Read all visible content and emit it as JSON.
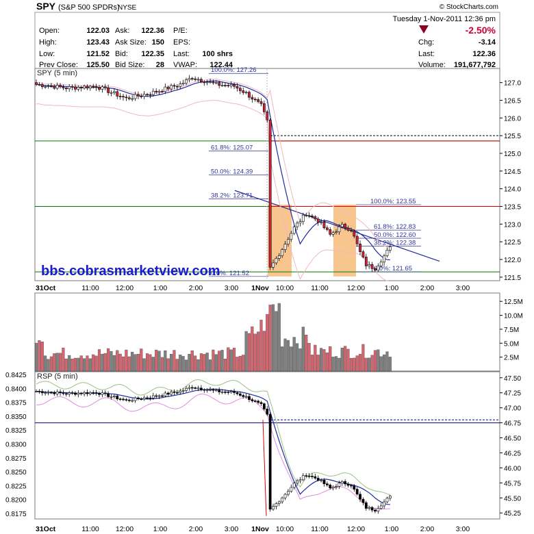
{
  "header": {
    "symbol": "SPY",
    "name": "(S&P 500 SPDRs)",
    "exchange": "NYSE",
    "watermark": "© StockCharts.com",
    "datetime": "Tuesday  1-Nov-2011  12:36 pm",
    "change_pct": "-2.50%",
    "fields": [
      {
        "label": "Open:",
        "value": "122.03"
      },
      {
        "label": "High:",
        "value": "123.43"
      },
      {
        "label": "Low:",
        "value": "121.52"
      },
      {
        "label": "Prev Close:",
        "value": "125.50"
      },
      {
        "label": "Ask:",
        "value": "122.36"
      },
      {
        "label": "Ask Size:",
        "value": "150"
      },
      {
        "label": "Bid:",
        "value": "122.35"
      },
      {
        "label": "Bid Size:",
        "value": "28"
      },
      {
        "label": "P/E:",
        "value": ""
      },
      {
        "label": "EPS:",
        "value": ""
      },
      {
        "label": "Last:",
        "value": "100 shrs"
      },
      {
        "label": "VWAP:",
        "value": "122.44"
      },
      {
        "label": "Chg:",
        "value": "-3.14"
      },
      {
        "label": "Last:",
        "value": "122.36"
      },
      {
        "label": "Volume:",
        "value": "191,677,792"
      }
    ]
  },
  "colors": {
    "up": "#ffffff",
    "down": "#d0243a",
    "wick": "#000000",
    "vwap_line": "#1a2aa0",
    "bands": "#f0b8bc",
    "green": "#007700",
    "red": "#dd0000",
    "navy": "#000080",
    "fib": "#333399",
    "shade": "#f9c58e",
    "vol_up": "#808080",
    "vol_down": "#d4646e",
    "watermark_text": "#1a1ad4",
    "neg_change": "#cc0033"
  },
  "price_panel": {
    "label": "SPY (5 min)",
    "watermark_url": "bbs.cobrasmarketview.com",
    "y_ticks": [
      "127.0",
      "126.5",
      "126.0",
      "125.5",
      "125.0",
      "124.5",
      "124.0",
      "123.5",
      "123.0",
      "122.5",
      "122.0",
      "121.5"
    ],
    "fib_labels_left": [
      {
        "text": "100.0%: 127.26",
        "price": 127.26
      },
      {
        "text": "61.8%: 125.07",
        "price": 125.07
      },
      {
        "text": "50.0%: 124.39",
        "price": 124.39
      },
      {
        "text": "38.2%: 123.71",
        "price": 123.71
      },
      {
        "text": "0.0%: 121.52",
        "price": 121.52
      }
    ],
    "fib_labels_right": [
      {
        "text": "100.0%: 123.55",
        "price": 123.55
      },
      {
        "text": "61.8%: 122.83",
        "price": 122.83
      },
      {
        "text": "50.0%: 122.60",
        "price": 122.6
      },
      {
        "text": "38.2%: 122.38",
        "price": 122.38
      },
      {
        "text": "0.0%: 121.65",
        "price": 121.65
      }
    ]
  },
  "x_axis_labels": [
    "31Oct",
    "11:00",
    "12:00",
    "1:00",
    "2:00",
    "3:00",
    "1Nov",
    "10:00",
    "11:00",
    "12:00",
    "1:00",
    "2:00",
    "3:00"
  ],
  "volume_panel": {
    "y_ticks": [
      "12.5M",
      "10.0M",
      "7.5M",
      "5.0M",
      "2.5M"
    ]
  },
  "rsp_panel": {
    "label": "RSP (5 min)",
    "y_ticks_left": [
      "0.8425",
      "0.8400",
      "0.8375",
      "0.8350",
      "0.8325",
      "0.8300",
      "0.8275",
      "0.8250",
      "0.8225",
      "0.8200",
      "0.8175"
    ],
    "y_ticks_right": [
      "47.50",
      "47.25",
      "47.00",
      "46.75",
      "46.50",
      "46.25",
      "46.00",
      "45.75",
      "45.50",
      "45.25"
    ]
  },
  "chart_data": {
    "type": "line",
    "title": "SPY (S&P 500 SPDRs) NYSE",
    "x": [
      "31Oct",
      "11:00",
      "12:00",
      "1:00",
      "2:00",
      "3:00",
      "1Nov",
      "10:00",
      "11:00",
      "12:00",
      "12:36"
    ],
    "series": [
      {
        "name": "SPY (5 min)",
        "values": [
          126.9,
          126.8,
          126.6,
          126.7,
          127.1,
          126.9,
          121.9,
          123.1,
          123.4,
          121.8,
          122.36
        ]
      },
      {
        "name": "RSP (5 min)",
        "values": [
          47.3,
          47.27,
          47.2,
          47.25,
          47.35,
          47.25,
          45.3,
          45.6,
          45.8,
          45.3,
          45.5
        ]
      }
    ],
    "volume": [
      5.5,
      3.5,
      3.0,
      3.2,
      3.5,
      9.0,
      13.5,
      7.0,
      5.0,
      4.0,
      3.0
    ],
    "levels": {
      "green_upper": 123.5,
      "green_lower": 121.65,
      "red_upper": 125.35,
      "red_lower": 123.5,
      "prev_close": 125.5
    },
    "ylim_price": [
      121.4,
      127.4
    ],
    "ylim_rsp_left": [
      0.8165,
      0.843
    ],
    "ylim_rsp_right": [
      45.15,
      47.6
    ],
    "ylim_volume": [
      0,
      14
    ]
  }
}
